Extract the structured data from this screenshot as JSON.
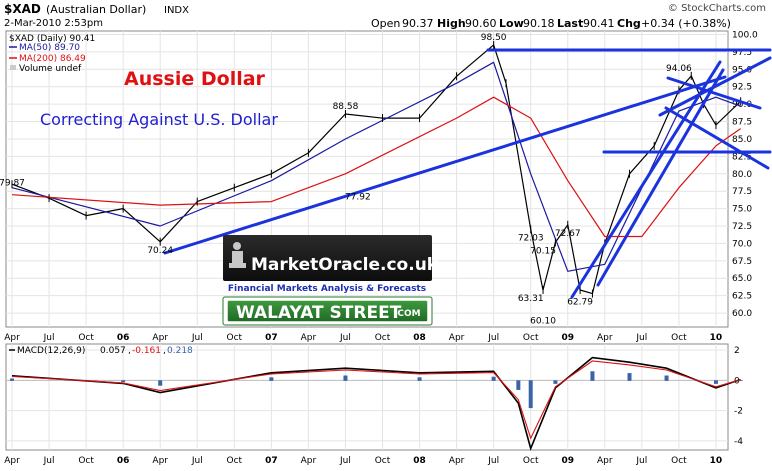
{
  "header": {
    "symbol": "$XAD",
    "name": "(Australian Dollar)",
    "exchange": "INDX",
    "date": "2-Mar-2010 2:53pm",
    "credit": "© StockCharts.com",
    "open_label": "Open",
    "open": "90.37",
    "high_label": "High",
    "high": "90.60",
    "low_label": "Low",
    "low": "90.18",
    "last_label": "Last",
    "last": "90.41",
    "chg_label": "Chg",
    "chg": "+0.34 (+0.38%)"
  },
  "legend": {
    "price": "$XAD (Daily) 90.41",
    "ma50": "MA(50) 89.70",
    "ma200": "MA(200) 86.49",
    "volume": "Volume undef"
  },
  "annotations": {
    "title": "Aussie Dollar",
    "subtitle": "Correcting Against U.S. Dollar"
  },
  "logos": {
    "marketoracle": "MarketOracle.co.uk",
    "marketoracle_tag": "Financial Markets Analysis & Forecasts",
    "walayat": "WALAYAT STREET",
    "walayat_tld": ".COM"
  },
  "macd_legend": {
    "label": "MACD(12,26,9)",
    "v1": "0.057",
    "v2": "-0.161",
    "v3": "0.218"
  },
  "colors": {
    "price": "#000000",
    "ma50": "#1a1aa0",
    "ma200": "#dd1111",
    "trend": "#1a33dd",
    "title_red": "#e01010",
    "subtitle_blue": "#2020d0",
    "histogram": "#3a63a8"
  },
  "chart_data": [
    {
      "type": "line",
      "series": [
        {
          "name": "$XAD (Daily) 90.41",
          "x": [
            "2005-04",
            "2005-07",
            "2005-10",
            "2006-01",
            "2006-04",
            "2006-07",
            "2006-10",
            "2007-01",
            "2007-04",
            "2007-07",
            "2007-10",
            "2008-01",
            "2008-04",
            "2008-07",
            "2008-08",
            "2008-10",
            "2008-11",
            "2008-12",
            "2009-01",
            "2009-02",
            "2009-03",
            "2009-04",
            "2009-06",
            "2009-08",
            "2009-10",
            "2009-11",
            "2009-12",
            "2010-01",
            "2010-03"
          ],
          "values": [
            78.5,
            76.5,
            74.0,
            75.0,
            70.24,
            76.0,
            78.0,
            80.0,
            83.0,
            88.58,
            88.0,
            88.0,
            94.0,
            98.5,
            93.0,
            72.03,
            63.31,
            70.15,
            72.67,
            63.31,
            62.79,
            70.0,
            80.0,
            84.0,
            92.0,
            94.06,
            90.0,
            87.0,
            90.41
          ]
        },
        {
          "name": "MA(50) 89.70",
          "x": [
            "2005-04",
            "2006-04",
            "2007-01",
            "2007-07",
            "2008-04",
            "2008-07",
            "2008-10",
            "2009-01",
            "2009-04",
            "2009-07",
            "2009-10",
            "2010-01",
            "2010-03"
          ],
          "values": [
            78.0,
            72.5,
            79.0,
            85.0,
            93.0,
            96.0,
            80.0,
            66.0,
            67.0,
            78.0,
            89.0,
            91.0,
            89.7
          ]
        },
        {
          "name": "MA(200) 86.49",
          "x": [
            "2005-04",
            "2006-04",
            "2007-01",
            "2007-07",
            "2008-04",
            "2008-07",
            "2008-10",
            "2009-01",
            "2009-04",
            "2009-07",
            "2009-10",
            "2010-01",
            "2010-03"
          ],
          "values": [
            77.0,
            75.5,
            76.0,
            80.0,
            88.0,
            91.0,
            88.0,
            79.0,
            71.0,
            71.0,
            78.0,
            84.0,
            86.49
          ]
        }
      ],
      "annotations": [
        {
          "label": "79.87",
          "x": "2005-04",
          "y": 79.87
        },
        {
          "label": "70.24",
          "x": "2006-04",
          "y": 70.24
        },
        {
          "label": "77.92",
          "x": "2007-08",
          "y": 77.92
        },
        {
          "label": "88.58",
          "x": "2007-07",
          "y": 88.58
        },
        {
          "label": "98.50",
          "x": "2008-07",
          "y": 98.5
        },
        {
          "label": "72.03",
          "x": "2008-10",
          "y": 72.03
        },
        {
          "label": "70.15",
          "x": "2008-11",
          "y": 70.15
        },
        {
          "label": "72.67",
          "x": "2009-01",
          "y": 72.67
        },
        {
          "label": "63.31",
          "x": "2008-10",
          "y": 63.31
        },
        {
          "label": "60.10",
          "x": "2008-11",
          "y": 60.1
        },
        {
          "label": "62.79",
          "x": "2009-02",
          "y": 62.79
        },
        {
          "label": "94.06",
          "x": "2009-10",
          "y": 94.06
        }
      ],
      "x_ticks": [
        "Apr",
        "Jul",
        "Oct",
        "06",
        "Apr",
        "Jul",
        "Oct",
        "07",
        "Apr",
        "Jul",
        "Oct",
        "08",
        "Apr",
        "Jul",
        "Oct",
        "09",
        "Apr",
        "Jul",
        "Oct",
        "10"
      ],
      "y_ticks": [
        "100.0",
        "97.5",
        "95.0",
        "92.5",
        "90.0",
        "87.5",
        "85.0",
        "82.5",
        "80.0",
        "77.5",
        "75.0",
        "72.5",
        "70.0",
        "67.5",
        "65.0",
        "62.5",
        "60.0"
      ],
      "ylim": [
        58.0,
        100.5
      ]
    },
    {
      "type": "line",
      "series": [
        {
          "name": "MACD(12,26,9)",
          "x": [
            "2005-04",
            "2006-01",
            "2006-04",
            "2007-01",
            "2007-07",
            "2008-01",
            "2008-07",
            "2008-09",
            "2008-10",
            "2008-12",
            "2009-03",
            "2009-06",
            "2009-09",
            "2010-01",
            "2010-03"
          ],
          "values": [
            0.3,
            -0.2,
            -0.8,
            0.5,
            0.8,
            0.5,
            0.6,
            -1.5,
            -4.5,
            -0.5,
            1.5,
            1.2,
            0.8,
            -0.5,
            0.057
          ]
        }
      ],
      "y_ticks": [
        "2",
        "0",
        "-2",
        "-4"
      ],
      "ylim": [
        -4.6,
        2.4
      ]
    }
  ]
}
